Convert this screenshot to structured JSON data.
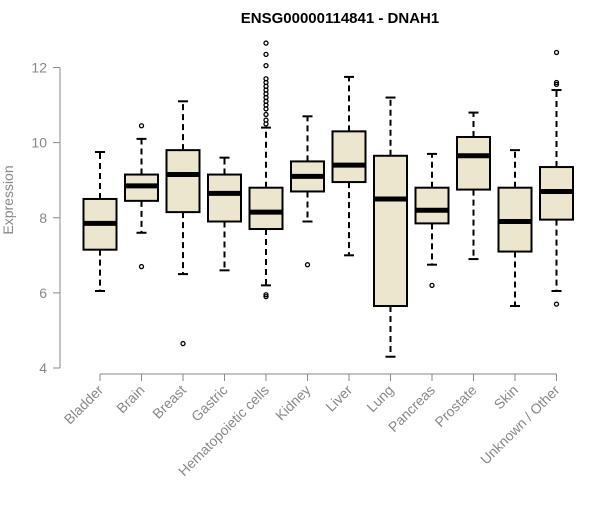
{
  "chart_data": {
    "type": "boxplot",
    "title": "ENSG00000114841 - DNAH1",
    "xlabel": "",
    "ylabel": "Expression",
    "ylim": [
      4,
      12.8
    ],
    "yticks": [
      4,
      6,
      8,
      10,
      12
    ],
    "grid": false,
    "legend": "none",
    "box_fill": "#ede6cf",
    "categories": [
      "Bladder",
      "Brain",
      "Breast",
      "Gastric",
      "Hematopoietic cells",
      "Kidney",
      "Liver",
      "Lung",
      "Pancreas",
      "Prostate",
      "Skin",
      "Unknown / Other"
    ],
    "boxes": [
      {
        "whisker_low": 6.05,
        "q1": 7.15,
        "median": 7.85,
        "q3": 8.5,
        "whisker_high": 9.75,
        "outliers": []
      },
      {
        "whisker_low": 7.6,
        "q1": 8.45,
        "median": 8.85,
        "q3": 9.15,
        "whisker_high": 10.1,
        "outliers": [
          6.7,
          10.45
        ]
      },
      {
        "whisker_low": 6.5,
        "q1": 8.15,
        "median": 9.15,
        "q3": 9.8,
        "whisker_high": 11.1,
        "outliers": [
          4.65
        ]
      },
      {
        "whisker_low": 6.6,
        "q1": 7.9,
        "median": 8.65,
        "q3": 9.15,
        "whisker_high": 9.6,
        "outliers": []
      },
      {
        "whisker_low": 6.2,
        "q1": 7.7,
        "median": 8.15,
        "q3": 8.8,
        "whisker_high": 10.4,
        "outliers": [
          5.9,
          5.95,
          10.5,
          10.6,
          10.75,
          10.9,
          11.0,
          11.1,
          11.2,
          11.3,
          11.4,
          11.5,
          11.6,
          11.7,
          12.05,
          12.35,
          12.65
        ]
      },
      {
        "whisker_low": 7.9,
        "q1": 8.7,
        "median": 9.1,
        "q3": 9.5,
        "whisker_high": 10.7,
        "outliers": [
          6.75
        ]
      },
      {
        "whisker_low": 7.0,
        "q1": 8.95,
        "median": 9.4,
        "q3": 10.3,
        "whisker_high": 11.75,
        "outliers": []
      },
      {
        "whisker_low": 4.3,
        "q1": 5.65,
        "median": 8.5,
        "q3": 9.65,
        "whisker_high": 11.2,
        "outliers": []
      },
      {
        "whisker_low": 6.75,
        "q1": 7.85,
        "median": 8.2,
        "q3": 8.8,
        "whisker_high": 9.7,
        "outliers": [
          6.2
        ]
      },
      {
        "whisker_low": 6.9,
        "q1": 8.75,
        "median": 9.65,
        "q3": 10.15,
        "whisker_high": 10.8,
        "outliers": []
      },
      {
        "whisker_low": 5.65,
        "q1": 7.1,
        "median": 7.9,
        "q3": 8.8,
        "whisker_high": 9.8,
        "outliers": []
      },
      {
        "whisker_low": 6.05,
        "q1": 7.95,
        "median": 8.7,
        "q3": 9.35,
        "whisker_high": 11.4,
        "outliers": [
          5.7,
          11.55,
          11.6,
          12.4
        ]
      }
    ]
  }
}
